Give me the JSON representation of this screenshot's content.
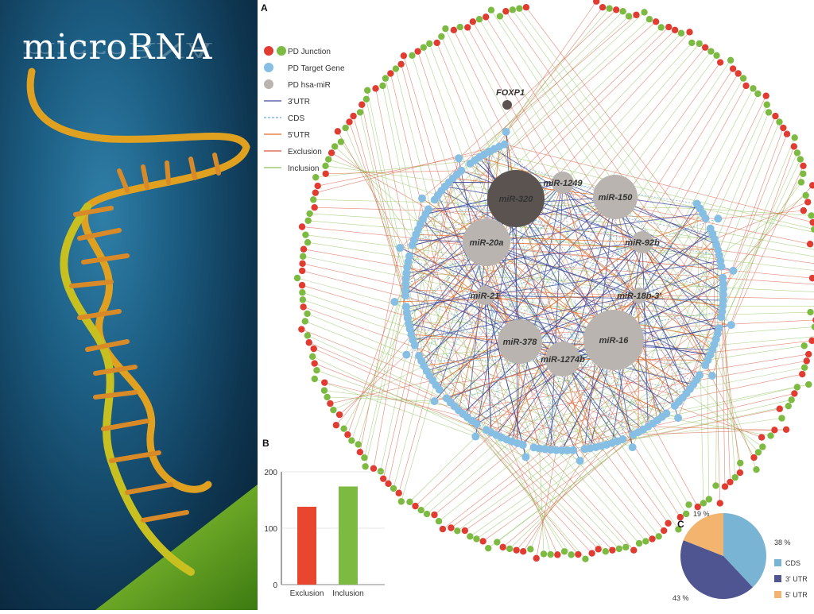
{
  "title": "microRNA",
  "colors": {
    "junction_red": "#e03c31",
    "junction_green": "#7dba42",
    "target_blue": "#86bfe3",
    "mir_gray": "#b9b4af",
    "mir_dark": "#5a5350",
    "utr3": "#3f4a9a",
    "cds": "#6aa9d8",
    "utr5": "#e06a2a",
    "exclusion": "#d9543b",
    "inclusion": "#8dc05a"
  },
  "panel_a": {
    "letter": "A",
    "legend": [
      {
        "label": "PD Junction",
        "icon": "red-green-dots-icon"
      },
      {
        "label": "PD Target Gene",
        "icon": "blue-dot-icon"
      },
      {
        "label": "PD hsa-miR",
        "icon": "gray-dot-icon"
      },
      {
        "label": "3'UTR",
        "icon": "solid-line-icon"
      },
      {
        "label": "CDS",
        "icon": "dashed-line-icon"
      },
      {
        "label": "5'UTR",
        "icon": "solid-line-icon"
      },
      {
        "label": "Exclusion",
        "icon": "solid-line-icon"
      },
      {
        "label": "Inclusion",
        "icon": "solid-line-icon"
      }
    ],
    "gene_label": "FOXP1",
    "mirs": [
      "miR-320",
      "miR-1249",
      "miR-150",
      "miR-20a",
      "miR-92b",
      "miR-21",
      "miR-18b-3'",
      "miR-378",
      "miR-16",
      "miR-1274b"
    ]
  },
  "chart_data": [
    {
      "type": "bar",
      "panel": "B",
      "categories": [
        "Exclusion",
        "Inclusion"
      ],
      "values": [
        138,
        174
      ],
      "colors": [
        "#e8462e",
        "#7dba42"
      ],
      "ylim": [
        0,
        200
      ],
      "yticks": [
        "0",
        "100",
        "200"
      ]
    },
    {
      "type": "pie",
      "panel": "C",
      "labels": [
        "CDS",
        "3' UTR",
        "5' UTR"
      ],
      "values": [
        38,
        43,
        19
      ],
      "value_labels": [
        "38 %",
        "43 %",
        "19 %"
      ],
      "colors": [
        "#7ab4d4",
        "#4e5591",
        "#f2b46e"
      ],
      "legend_position": "right"
    }
  ]
}
